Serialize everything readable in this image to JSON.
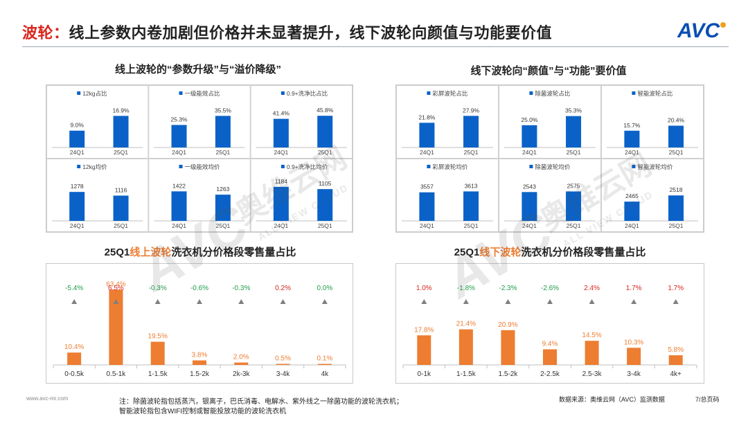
{
  "header": {
    "title_prefix": "波轮：",
    "title_main": "线上参数内卷加剧但价格并未显著提升，线下波轮向颜值与功能要价值",
    "logo_text": "AVC"
  },
  "sections": {
    "top_left": "线上波轮的“参数升级”与“溢价降级”",
    "top_right": "线下波轮向“颜值”与“功能”要价值",
    "bottom_left": {
      "a": "25Q1",
      "b": "线上波轮",
      "c": "洗衣机分价格段零售量占比"
    },
    "bottom_right": {
      "a": "25Q1",
      "b": "线下波轮",
      "c": "洗衣机分价格段零售量占比"
    }
  },
  "watermark": {
    "main": "奥维云网",
    "sub": "ALL VIEW CLOUD",
    "logo": "AVC"
  },
  "colors": {
    "blue": "#0a62c8",
    "orange": "#ed7d31",
    "red": "#d9251c",
    "green": "#1f9d4b",
    "grid": "#d0d0d0"
  },
  "chart_data": [
    {
      "type": "bar",
      "group": "online",
      "title": "12kg占比",
      "categories": [
        "24Q1",
        "25Q1"
      ],
      "values": [
        9.0,
        16.9
      ],
      "labels": [
        "9.0%",
        "16.9%"
      ],
      "ylim": [
        0,
        20
      ]
    },
    {
      "type": "bar",
      "group": "online",
      "title": "一级能效占比",
      "categories": [
        "24Q1",
        "25Q1"
      ],
      "values": [
        25.3,
        35.5
      ],
      "labels": [
        "25.3%",
        "35.5%"
      ],
      "ylim": [
        0,
        42
      ]
    },
    {
      "type": "bar",
      "group": "online",
      "title": "0.9+洗净比占比",
      "categories": [
        "24Q1",
        "25Q1"
      ],
      "values": [
        41.4,
        45.8
      ],
      "labels": [
        "41.4%",
        "45.8%"
      ],
      "ylim": [
        0,
        54
      ]
    },
    {
      "type": "bar",
      "group": "online",
      "title": "12kg均价",
      "categories": [
        "24Q1",
        "25Q1"
      ],
      "values": [
        1278,
        1116
      ],
      "labels": [
        "1278",
        "1116"
      ],
      "ylim": [
        0,
        1650
      ]
    },
    {
      "type": "bar",
      "group": "online",
      "title": "一级能效均价",
      "categories": [
        "24Q1",
        "25Q1"
      ],
      "values": [
        1422,
        1263
      ],
      "labels": [
        "1422",
        "1263"
      ],
      "ylim": [
        0,
        1800
      ]
    },
    {
      "type": "bar",
      "group": "online",
      "title": "0.9+洗净比均价",
      "categories": [
        "24Q1",
        "25Q1"
      ],
      "values": [
        1184,
        1105
      ],
      "labels": [
        "1184",
        "1105"
      ],
      "ylim": [
        0,
        1300
      ]
    },
    {
      "type": "bar",
      "group": "offline",
      "title": "彩屏波轮占比",
      "categories": [
        "24Q1",
        "25Q1"
      ],
      "values": [
        21.8,
        27.9
      ],
      "labels": [
        "21.8%",
        "27.9%"
      ],
      "ylim": [
        0,
        33
      ]
    },
    {
      "type": "bar",
      "group": "offline",
      "title": "除菌波轮占比",
      "categories": [
        "24Q1",
        "25Q1"
      ],
      "values": [
        25.0,
        35.3
      ],
      "labels": [
        "25.0%",
        "35.3%"
      ],
      "ylim": [
        0,
        42
      ]
    },
    {
      "type": "bar",
      "group": "offline",
      "title": "智能波轮占比",
      "categories": [
        "24Q1",
        "25Q1"
      ],
      "values": [
        15.7,
        20.4
      ],
      "labels": [
        "15.7%",
        "20.4%"
      ],
      "ylim": [
        0,
        35
      ]
    },
    {
      "type": "bar",
      "group": "offline",
      "title": "彩屏波轮均价",
      "categories": [
        "24Q1",
        "25Q1"
      ],
      "values": [
        3557,
        3613
      ],
      "labels": [
        "3557",
        "3613"
      ],
      "ylim": [
        1800,
        4100
      ]
    },
    {
      "type": "bar",
      "group": "offline",
      "title": "除菌波轮均价",
      "categories": [
        "24Q1",
        "25Q1"
      ],
      "values": [
        2543,
        2575
      ],
      "labels": [
        "2543",
        "2575"
      ],
      "ylim": [
        1000,
        3000
      ]
    },
    {
      "type": "bar",
      "group": "offline",
      "title": "智能波轮均价",
      "categories": [
        "24Q1",
        "25Q1"
      ],
      "values": [
        2465,
        2518
      ],
      "labels": [
        "2465",
        "2518"
      ],
      "ylim": [
        2300,
        2620
      ]
    },
    {
      "type": "bar",
      "group": "online_price",
      "title": "25Q1线上波轮洗衣机分价格段零售量占比",
      "categories": [
        "0-0.5k",
        "0.5-1k",
        "1-1.5k",
        "1.5-2k",
        "2k-3k",
        "3-4k",
        "4k"
      ],
      "values": [
        10.4,
        63.4,
        19.5,
        3.8,
        2.0,
        0.5,
        0.1
      ],
      "labels": [
        "10.4%",
        "63.4%",
        "19.5%",
        "3.8%",
        "2.0%",
        "0.5%",
        "0.1%"
      ],
      "changes": [
        -5.4,
        6.5,
        -0.3,
        -0.6,
        -0.3,
        0.2,
        0.0
      ],
      "change_labels": [
        "-5.4%",
        "6.5%",
        "-0.3%",
        "-0.6%",
        "-0.3%",
        "0.2%",
        "0.0%"
      ],
      "ylim": [
        0,
        70
      ]
    },
    {
      "type": "bar",
      "group": "offline_price",
      "title": "25Q1线下波轮洗衣机分价格段零售量占比",
      "categories": [
        "0-1k",
        "1-1.5k",
        "1.5-2k",
        "2-2.5k",
        "2.5-3k",
        "3-4k",
        "4k+"
      ],
      "values": [
        17.8,
        21.4,
        20.9,
        9.4,
        14.5,
        10.3,
        5.8
      ],
      "labels": [
        "17.8%",
        "21.4%",
        "20.9%",
        "9.4%",
        "14.5%",
        "10.3%",
        "5.8%"
      ],
      "changes": [
        1.0,
        -1.8,
        -2.3,
        -2.6,
        2.4,
        1.7,
        1.7
      ],
      "change_labels": [
        "1.0%",
        "-1.8%",
        "-2.3%",
        "-2.6%",
        "2.4%",
        "1.7%",
        "1.7%"
      ],
      "ylim": [
        0,
        50
      ]
    }
  ],
  "footer": {
    "website": "www.avc-mr.com",
    "note_line1": "注：除菌波轮指包括蒸汽，银离子，巴氏消毒、电解水、紫外线之一除菌功能的波轮洗衣机；",
    "note_line2": "智能波轮指包含WIFI控制或智能投放功能的波轮洗衣机",
    "source": "数据来源：奥维云网（AVC）监测数据",
    "page": "7/总页码"
  }
}
